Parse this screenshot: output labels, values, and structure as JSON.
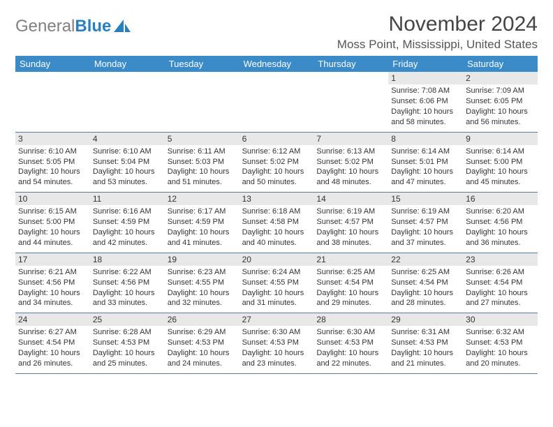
{
  "brand": {
    "part1": "General",
    "part2": "Blue"
  },
  "title": "November 2024",
  "location": "Moss Point, Mississippi, United States",
  "colors": {
    "header_bg": "#3b8bc9",
    "daynum_bg": "#e8e8e8",
    "rule": "#5a7a99",
    "brand_gray": "#808080",
    "brand_blue": "#2a7fc1"
  },
  "weekdays": [
    "Sunday",
    "Monday",
    "Tuesday",
    "Wednesday",
    "Thursday",
    "Friday",
    "Saturday"
  ],
  "weeks": [
    [
      {
        "n": "",
        "sr": "",
        "ss": "",
        "dl": ""
      },
      {
        "n": "",
        "sr": "",
        "ss": "",
        "dl": ""
      },
      {
        "n": "",
        "sr": "",
        "ss": "",
        "dl": ""
      },
      {
        "n": "",
        "sr": "",
        "ss": "",
        "dl": ""
      },
      {
        "n": "",
        "sr": "",
        "ss": "",
        "dl": ""
      },
      {
        "n": "1",
        "sr": "Sunrise: 7:08 AM",
        "ss": "Sunset: 6:06 PM",
        "dl": "Daylight: 10 hours and 58 minutes."
      },
      {
        "n": "2",
        "sr": "Sunrise: 7:09 AM",
        "ss": "Sunset: 6:05 PM",
        "dl": "Daylight: 10 hours and 56 minutes."
      }
    ],
    [
      {
        "n": "3",
        "sr": "Sunrise: 6:10 AM",
        "ss": "Sunset: 5:05 PM",
        "dl": "Daylight: 10 hours and 54 minutes."
      },
      {
        "n": "4",
        "sr": "Sunrise: 6:10 AM",
        "ss": "Sunset: 5:04 PM",
        "dl": "Daylight: 10 hours and 53 minutes."
      },
      {
        "n": "5",
        "sr": "Sunrise: 6:11 AM",
        "ss": "Sunset: 5:03 PM",
        "dl": "Daylight: 10 hours and 51 minutes."
      },
      {
        "n": "6",
        "sr": "Sunrise: 6:12 AM",
        "ss": "Sunset: 5:02 PM",
        "dl": "Daylight: 10 hours and 50 minutes."
      },
      {
        "n": "7",
        "sr": "Sunrise: 6:13 AM",
        "ss": "Sunset: 5:02 PM",
        "dl": "Daylight: 10 hours and 48 minutes."
      },
      {
        "n": "8",
        "sr": "Sunrise: 6:14 AM",
        "ss": "Sunset: 5:01 PM",
        "dl": "Daylight: 10 hours and 47 minutes."
      },
      {
        "n": "9",
        "sr": "Sunrise: 6:14 AM",
        "ss": "Sunset: 5:00 PM",
        "dl": "Daylight: 10 hours and 45 minutes."
      }
    ],
    [
      {
        "n": "10",
        "sr": "Sunrise: 6:15 AM",
        "ss": "Sunset: 5:00 PM",
        "dl": "Daylight: 10 hours and 44 minutes."
      },
      {
        "n": "11",
        "sr": "Sunrise: 6:16 AM",
        "ss": "Sunset: 4:59 PM",
        "dl": "Daylight: 10 hours and 42 minutes."
      },
      {
        "n": "12",
        "sr": "Sunrise: 6:17 AM",
        "ss": "Sunset: 4:59 PM",
        "dl": "Daylight: 10 hours and 41 minutes."
      },
      {
        "n": "13",
        "sr": "Sunrise: 6:18 AM",
        "ss": "Sunset: 4:58 PM",
        "dl": "Daylight: 10 hours and 40 minutes."
      },
      {
        "n": "14",
        "sr": "Sunrise: 6:19 AM",
        "ss": "Sunset: 4:57 PM",
        "dl": "Daylight: 10 hours and 38 minutes."
      },
      {
        "n": "15",
        "sr": "Sunrise: 6:19 AM",
        "ss": "Sunset: 4:57 PM",
        "dl": "Daylight: 10 hours and 37 minutes."
      },
      {
        "n": "16",
        "sr": "Sunrise: 6:20 AM",
        "ss": "Sunset: 4:56 PM",
        "dl": "Daylight: 10 hours and 36 minutes."
      }
    ],
    [
      {
        "n": "17",
        "sr": "Sunrise: 6:21 AM",
        "ss": "Sunset: 4:56 PM",
        "dl": "Daylight: 10 hours and 34 minutes."
      },
      {
        "n": "18",
        "sr": "Sunrise: 6:22 AM",
        "ss": "Sunset: 4:56 PM",
        "dl": "Daylight: 10 hours and 33 minutes."
      },
      {
        "n": "19",
        "sr": "Sunrise: 6:23 AM",
        "ss": "Sunset: 4:55 PM",
        "dl": "Daylight: 10 hours and 32 minutes."
      },
      {
        "n": "20",
        "sr": "Sunrise: 6:24 AM",
        "ss": "Sunset: 4:55 PM",
        "dl": "Daylight: 10 hours and 31 minutes."
      },
      {
        "n": "21",
        "sr": "Sunrise: 6:25 AM",
        "ss": "Sunset: 4:54 PM",
        "dl": "Daylight: 10 hours and 29 minutes."
      },
      {
        "n": "22",
        "sr": "Sunrise: 6:25 AM",
        "ss": "Sunset: 4:54 PM",
        "dl": "Daylight: 10 hours and 28 minutes."
      },
      {
        "n": "23",
        "sr": "Sunrise: 6:26 AM",
        "ss": "Sunset: 4:54 PM",
        "dl": "Daylight: 10 hours and 27 minutes."
      }
    ],
    [
      {
        "n": "24",
        "sr": "Sunrise: 6:27 AM",
        "ss": "Sunset: 4:54 PM",
        "dl": "Daylight: 10 hours and 26 minutes."
      },
      {
        "n": "25",
        "sr": "Sunrise: 6:28 AM",
        "ss": "Sunset: 4:53 PM",
        "dl": "Daylight: 10 hours and 25 minutes."
      },
      {
        "n": "26",
        "sr": "Sunrise: 6:29 AM",
        "ss": "Sunset: 4:53 PM",
        "dl": "Daylight: 10 hours and 24 minutes."
      },
      {
        "n": "27",
        "sr": "Sunrise: 6:30 AM",
        "ss": "Sunset: 4:53 PM",
        "dl": "Daylight: 10 hours and 23 minutes."
      },
      {
        "n": "28",
        "sr": "Sunrise: 6:30 AM",
        "ss": "Sunset: 4:53 PM",
        "dl": "Daylight: 10 hours and 22 minutes."
      },
      {
        "n": "29",
        "sr": "Sunrise: 6:31 AM",
        "ss": "Sunset: 4:53 PM",
        "dl": "Daylight: 10 hours and 21 minutes."
      },
      {
        "n": "30",
        "sr": "Sunrise: 6:32 AM",
        "ss": "Sunset: 4:53 PM",
        "dl": "Daylight: 10 hours and 20 minutes."
      }
    ]
  ]
}
